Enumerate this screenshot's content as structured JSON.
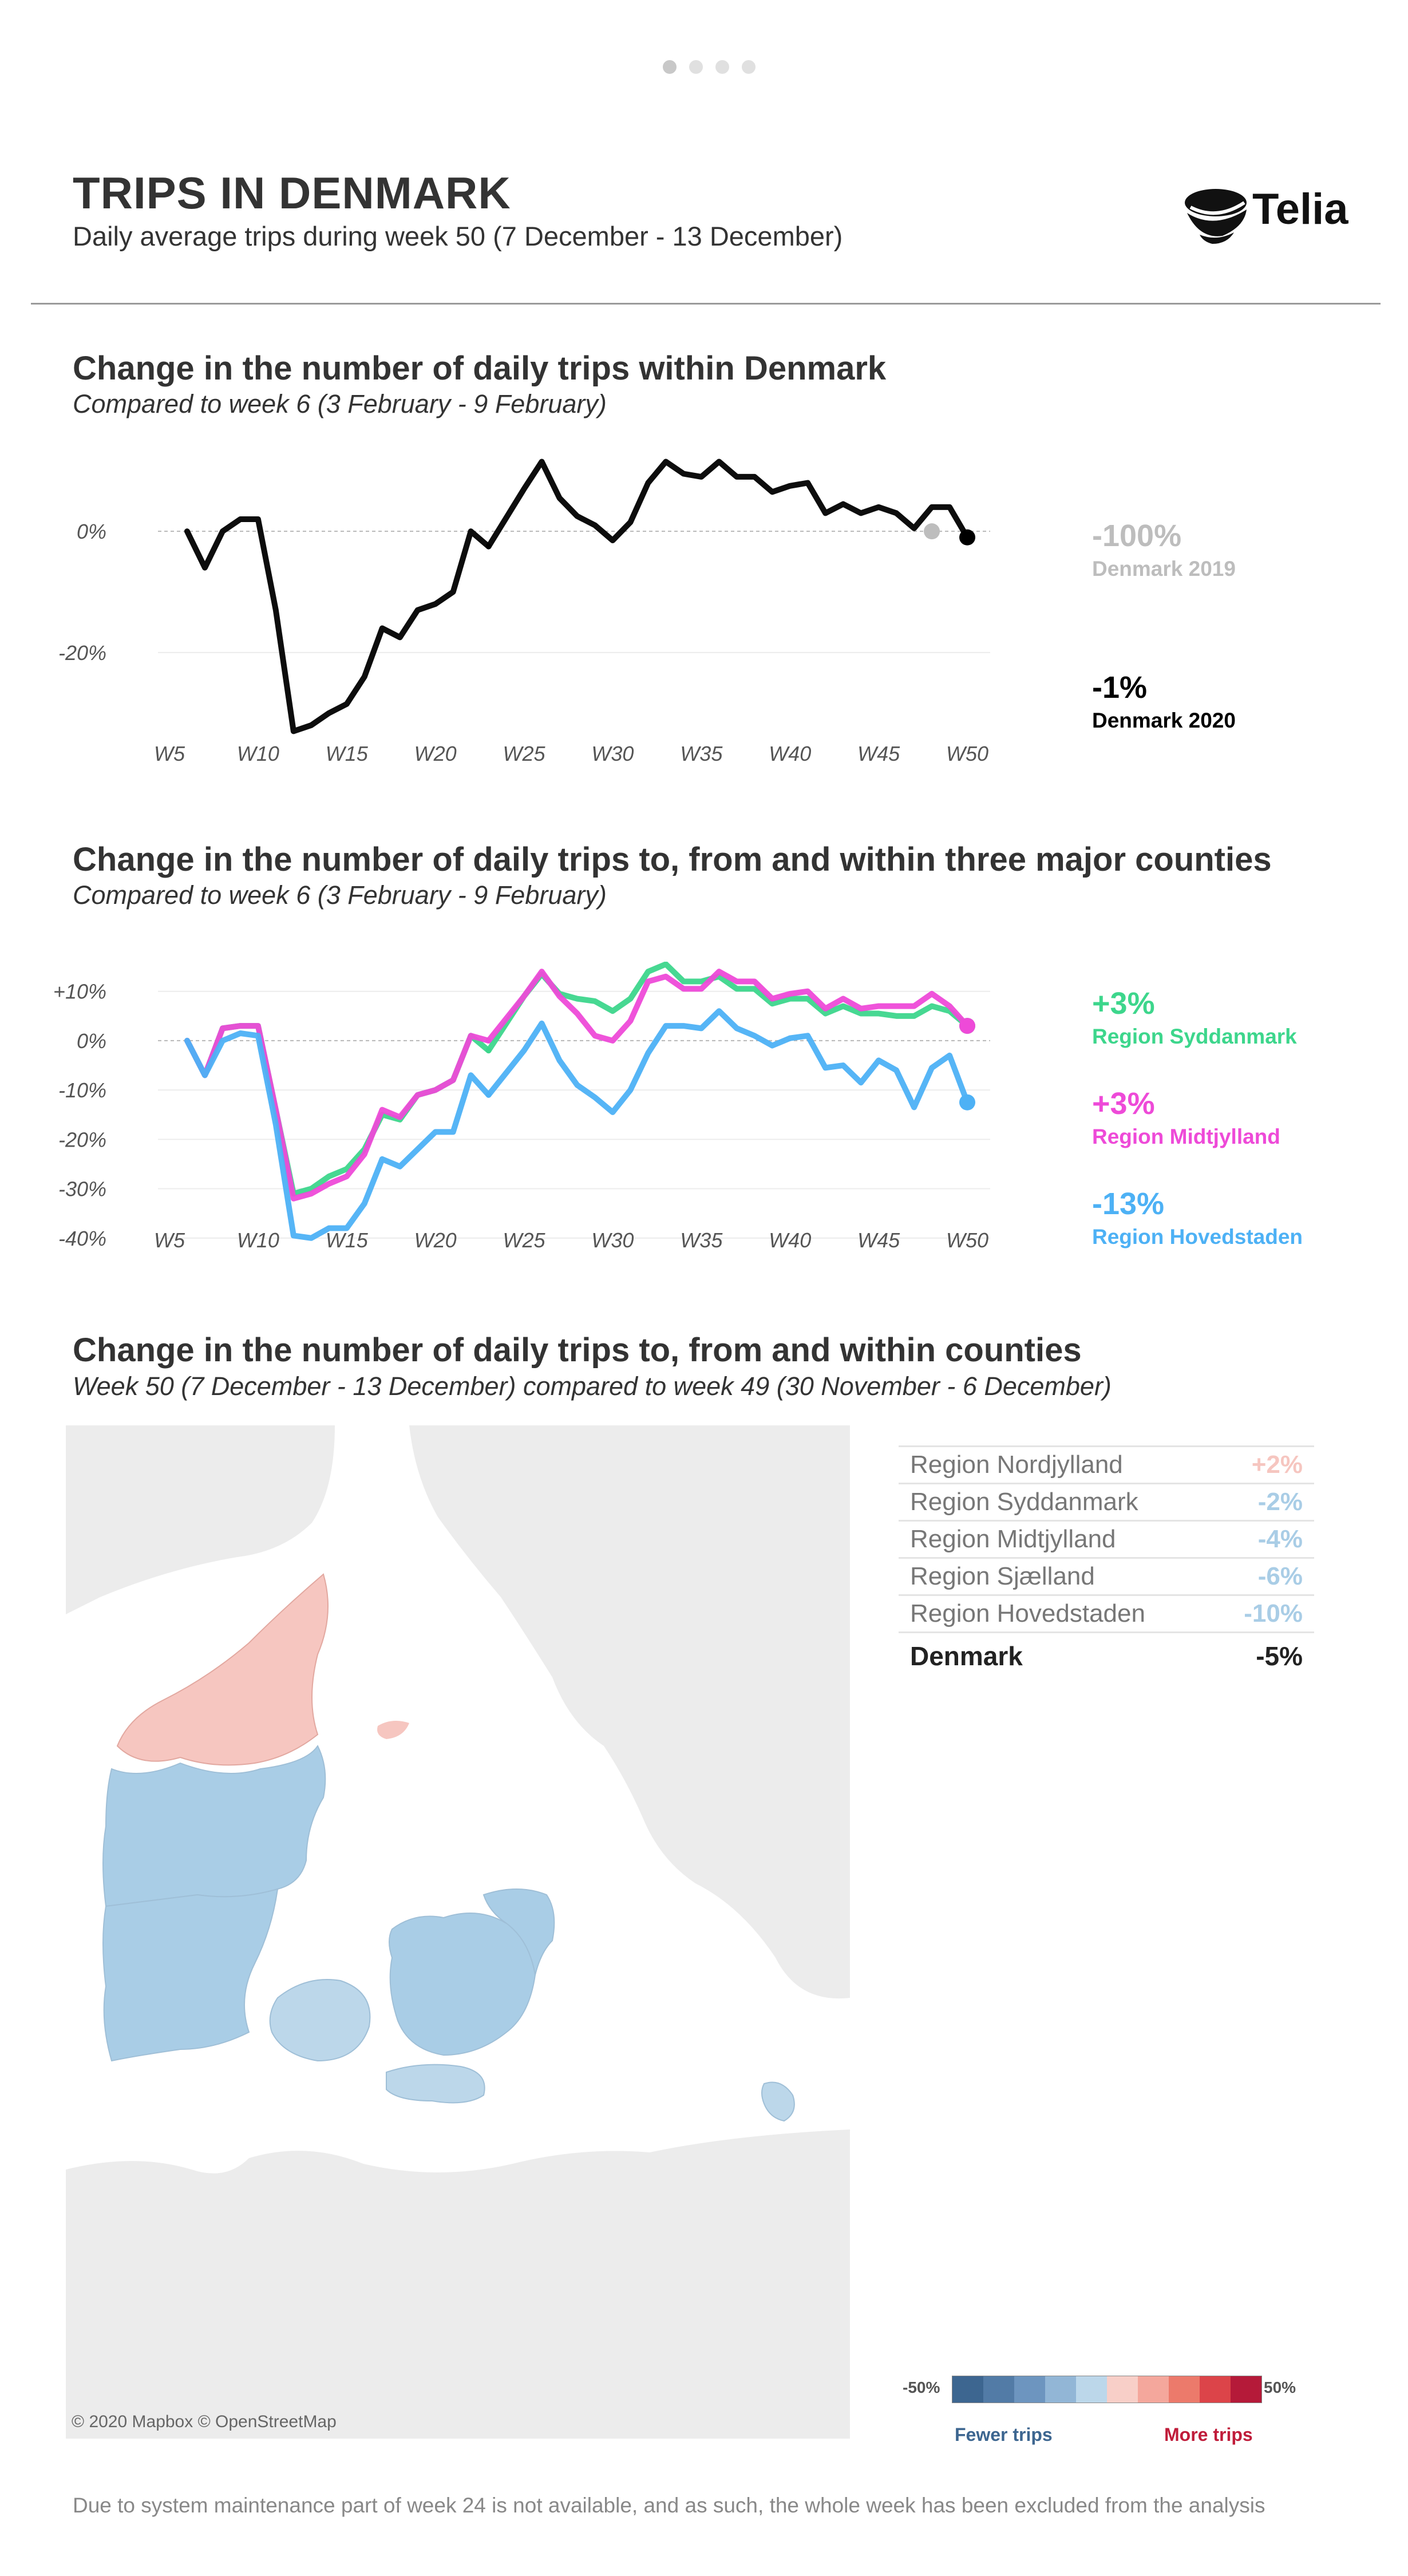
{
  "header": {
    "title": "TRIPS IN DENMARK",
    "subtitle": "Daily average trips during week 50 (7 December - 13 December)",
    "brand": "Telia",
    "brand_color": "#111111"
  },
  "section1": {
    "title": "Change in the number of daily trips within Denmark",
    "subtitle": "Compared to week 6 (3 February - 9 February)",
    "legend": [
      {
        "value": "-100%",
        "name": "Denmark 2019",
        "color": "#bdbdbd"
      },
      {
        "value": "-1%",
        "name": "Denmark 2020",
        "color": "#000000"
      }
    ]
  },
  "section2": {
    "title": "Change in the number of daily trips to, from and within three major counties",
    "subtitle": "Compared to week 6 (3 February - 9 February)",
    "legend": [
      {
        "value": "+3%",
        "name": "Region Syddanmark",
        "color": "#3dd68c"
      },
      {
        "value": "+3%",
        "name": "Region Midtjylland",
        "color": "#ee4ad8"
      },
      {
        "value": "-13%",
        "name": "Region Hovedstaden",
        "color": "#4db1f5"
      }
    ]
  },
  "section3": {
    "title": "Change in the number of daily trips to, from and within counties",
    "subtitle": "Week 50 (7 December - 13 December) compared to week 49 (30 November - 6 December)",
    "map_credit": "© 2020 Mapbox © OpenStreetMap",
    "regions": [
      {
        "name": "Region Nordjylland",
        "value": "+2%",
        "color": "#f6c6c0"
      },
      {
        "name": "Region Syddanmark",
        "value": "-2%",
        "color": "#a9cde6"
      },
      {
        "name": "Region Midtjylland",
        "value": "-4%",
        "color": "#a9cde6"
      },
      {
        "name": "Region Sjælland",
        "value": "-6%",
        "color": "#a9cde6"
      },
      {
        "name": "Region Hovedstaden",
        "value": "-10%",
        "color": "#a9cde6"
      }
    ],
    "total": {
      "name": "Denmark",
      "value": "-5%"
    },
    "scale": {
      "min_label": "-50%",
      "max_label": "50%",
      "fewer_label": "Fewer trips",
      "more_label": "More trips",
      "colors": [
        "#3d6690",
        "#527ba6",
        "#6d95bf",
        "#92b6d6",
        "#bcd7ea",
        "#f8cfc8",
        "#f4a79c",
        "#ec7a6b",
        "#dc4449",
        "#b51a39"
      ]
    }
  },
  "footnote": "Due to system maintenance part of week 24 is not available, and as such, the whole week has been excluded from the analysis",
  "chart_data": [
    {
      "type": "line",
      "title": "Change in the number of daily trips within Denmark",
      "x_ticks": [
        "W5",
        "W10",
        "W15",
        "W20",
        "W25",
        "W30",
        "W35",
        "W40",
        "W45",
        "W50"
      ],
      "x_range": [
        5,
        50
      ],
      "y_ticks": [
        "0%",
        "-20%"
      ],
      "y_tick_values": [
        0,
        -20
      ],
      "ylim": [
        -34,
        14
      ],
      "series": [
        {
          "name": "Denmark 2020",
          "color": "#000000",
          "x": [
            6,
            7,
            8,
            9,
            10,
            11,
            12,
            13,
            14,
            15,
            16,
            17,
            18,
            19,
            20,
            21,
            22,
            23,
            25,
            26,
            27,
            28,
            29,
            30,
            31,
            32,
            33,
            34,
            35,
            36,
            37,
            38,
            39,
            40,
            41,
            42,
            43,
            44,
            45,
            46,
            47,
            48,
            49,
            50
          ],
          "y": [
            0,
            -6,
            0,
            2,
            2,
            -13,
            -33,
            -32,
            -30,
            -28.5,
            -24,
            -16,
            -17.5,
            -13,
            -12,
            -10,
            0,
            -2.5,
            7,
            11.5,
            5.5,
            2.5,
            1,
            -1.5,
            1.5,
            8,
            11.5,
            9.5,
            9,
            11.5,
            9,
            9,
            6.5,
            7.5,
            8,
            3,
            4.5,
            3,
            4,
            3,
            0.5,
            4,
            4,
            -1
          ]
        },
        {
          "name": "Denmark 2019",
          "color": "#bdbdbd",
          "x": [
            48
          ],
          "y": [
            0
          ]
        }
      ]
    },
    {
      "type": "line",
      "title": "Change in the number of daily trips to, from and within three major counties",
      "x_ticks": [
        "W5",
        "W10",
        "W15",
        "W20",
        "W25",
        "W30",
        "W35",
        "W40",
        "W45",
        "W50"
      ],
      "x_range": [
        5,
        50
      ],
      "y_ticks": [
        "+10%",
        "0%",
        "-10%",
        "-20%",
        "-30%",
        "-40%"
      ],
      "y_tick_values": [
        10,
        0,
        -10,
        -20,
        -30,
        -40
      ],
      "ylim": [
        -42,
        16
      ],
      "series": [
        {
          "name": "Region Syddanmark",
          "color": "#3dd68c",
          "x": [
            6,
            7,
            8,
            9,
            10,
            11,
            12,
            13,
            14,
            15,
            16,
            17,
            18,
            19,
            20,
            21,
            22,
            23,
            25,
            26,
            27,
            28,
            29,
            30,
            31,
            32,
            33,
            34,
            35,
            36,
            37,
            38,
            39,
            40,
            41,
            42,
            43,
            44,
            45,
            46,
            47,
            48,
            49,
            50
          ],
          "y": [
            0,
            -7,
            2.5,
            3,
            3,
            -14,
            -31,
            -30,
            -27.5,
            -26,
            -22,
            -15,
            -16,
            -11,
            -10,
            -8,
            1,
            -2,
            9,
            13.5,
            9.5,
            8.5,
            8,
            6,
            8.5,
            14,
            15.5,
            12,
            12,
            13,
            10.5,
            10.5,
            7.5,
            8.5,
            8.5,
            5.5,
            7,
            5.5,
            5.5,
            5,
            5,
            7,
            6,
            3
          ]
        },
        {
          "name": "Region Midtjylland",
          "color": "#ee4ad8",
          "x": [
            6,
            7,
            8,
            9,
            10,
            11,
            12,
            13,
            14,
            15,
            16,
            17,
            18,
            19,
            20,
            21,
            22,
            23,
            25,
            26,
            27,
            28,
            29,
            30,
            31,
            32,
            33,
            34,
            35,
            36,
            37,
            38,
            39,
            40,
            41,
            42,
            43,
            44,
            45,
            46,
            47,
            48,
            49,
            50
          ],
          "y": [
            0,
            -7,
            2.5,
            3,
            3,
            -14,
            -32,
            -31,
            -29,
            -27.5,
            -23,
            -14,
            -15.5,
            -11,
            -10,
            -8,
            1,
            0,
            9,
            14,
            9,
            5.5,
            1,
            0,
            4,
            12,
            13,
            10.5,
            10.5,
            14,
            12,
            12,
            8.5,
            9.5,
            10,
            6.5,
            8.5,
            6.5,
            7,
            7,
            7,
            9.5,
            7,
            3
          ]
        },
        {
          "name": "Region Hovedstaden",
          "color": "#4db1f5",
          "x": [
            6,
            7,
            8,
            9,
            10,
            11,
            12,
            13,
            14,
            15,
            16,
            17,
            18,
            19,
            20,
            21,
            22,
            23,
            25,
            26,
            27,
            28,
            29,
            30,
            31,
            32,
            33,
            34,
            35,
            36,
            37,
            38,
            39,
            40,
            41,
            42,
            43,
            44,
            45,
            46,
            47,
            48,
            49,
            50
          ],
          "y": [
            0,
            -7,
            0,
            1.5,
            1,
            -17,
            -39.5,
            -40,
            -38,
            -38,
            -33,
            -24,
            -25.5,
            -22,
            -18.5,
            -18.5,
            -7,
            -11,
            -2,
            3.5,
            -4,
            -9,
            -11.5,
            -14.5,
            -10,
            -2.5,
            3,
            3,
            2.5,
            6,
            2.5,
            1,
            -1,
            0.5,
            1,
            -5.5,
            -5,
            -8.5,
            -4,
            -6,
            -13.5,
            -5.5,
            -3,
            -12.5
          ]
        }
      ]
    }
  ]
}
